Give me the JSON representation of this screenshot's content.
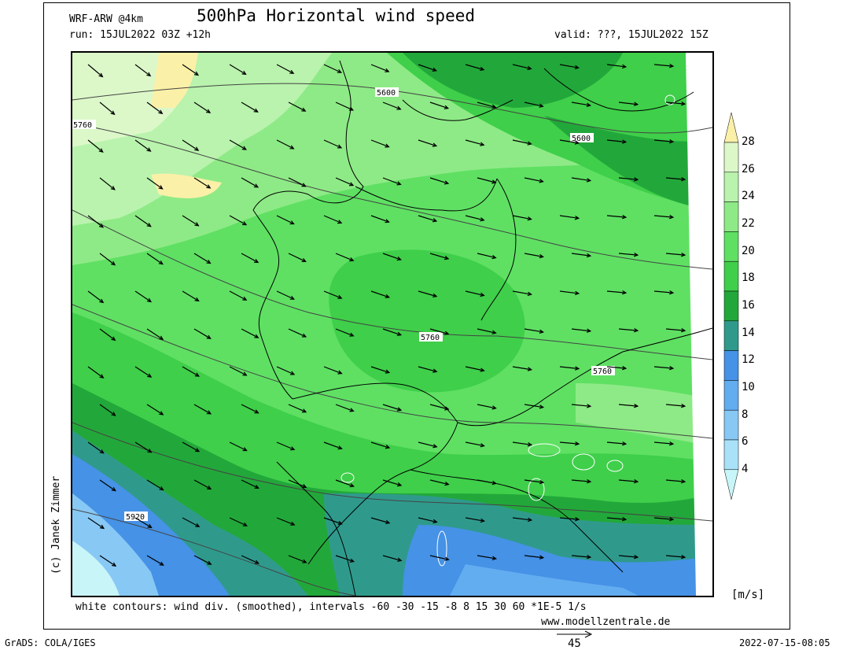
{
  "header": {
    "model": "WRF-ARW @4km",
    "title": "500hPa Horizontal wind speed",
    "run": "run: 15JUL2022 03Z +12h",
    "valid": "valid: ???, 15JUL2022 15Z"
  },
  "footer": {
    "note": "white contours: wind div. (smoothed), intervals -60 -30 -15 -8 8 15 30 60 *1E-5 1/s",
    "website": "www.modellzentrale.de",
    "software": "GrADS: COLA/IGES",
    "timestamp": "2022-07-15-08:05",
    "reference_vector": "45"
  },
  "copyright": "(c) Janek Zimmer",
  "colorbar": {
    "units": "[m/s]",
    "labels": [
      "4",
      "6",
      "8",
      "10",
      "12",
      "14",
      "16",
      "18",
      "20",
      "22",
      "24",
      "26",
      "28"
    ],
    "colors": [
      "#c8f5f8",
      "#a9e2f8",
      "#88c8f5",
      "#62acf0",
      "#4592e6",
      "#2f9a8c",
      "#22a83a",
      "#3fcf4a",
      "#5fe063",
      "#8eea86",
      "#b9f3ad",
      "#dcf8c9",
      "#fbf0a8"
    ]
  },
  "height_contour_labels": [
    "5600",
    "5600",
    "5760",
    "5760",
    "5760",
    "5920"
  ],
  "map_colors": {
    "land_border": "#000000",
    "contour": "#444444",
    "arrow": "#000000"
  }
}
